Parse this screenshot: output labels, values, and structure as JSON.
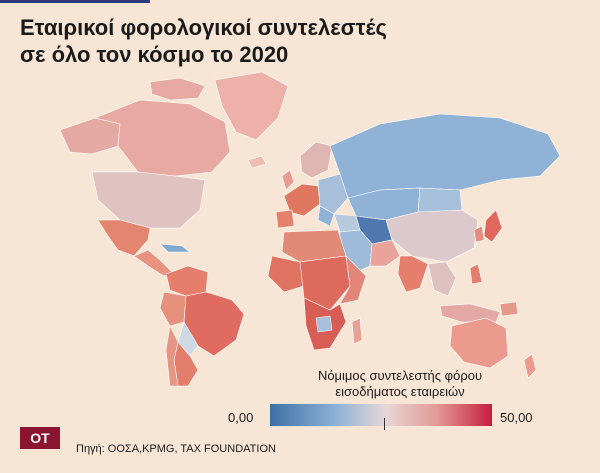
{
  "title_line1": "Εταιρικοί φορολογικοί συντελεστές",
  "title_line2": "σε όλο τον κόσμο το 2020",
  "legend": {
    "title_line1": "Νόμιμος συντελεστής φόρου",
    "title_line2": "εισοδήματος εταιρειών",
    "min": "0,00",
    "max": "50,00",
    "color_low": "#3f6fa8",
    "color_mid": "#e6d7d6",
    "color_high": "#c41f3c"
  },
  "logo_text": "OT",
  "source": "Πηγή: ΟΟΣΑ,KPMG, TAX FOUNDATION"
}
